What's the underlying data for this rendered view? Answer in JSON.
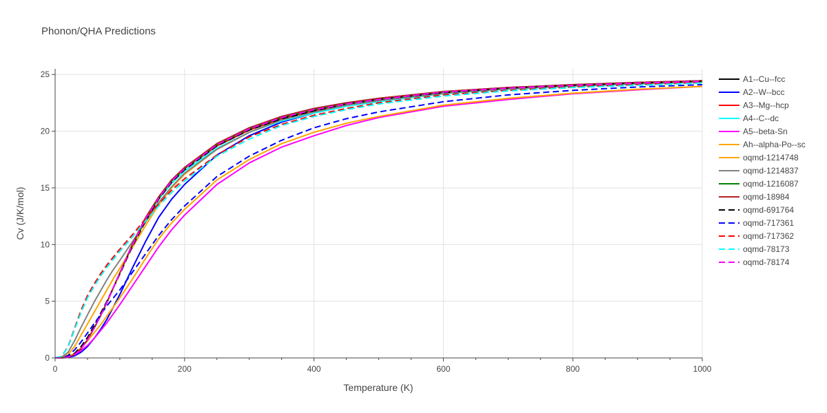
{
  "chart_data": {
    "type": "line",
    "title": "Phonon/QHA Predictions",
    "xlabel": "Temperature (K)",
    "ylabel": "Cv (J/K/mol)",
    "xlim": [
      0,
      1000
    ],
    "ylim": [
      0,
      25.5
    ],
    "x_ticks": [
      0,
      200,
      400,
      600,
      800,
      1000
    ],
    "y_ticks": [
      0,
      5,
      10,
      15,
      20,
      25
    ],
    "grid": true,
    "legend_position": "right",
    "x": [
      0,
      10,
      20,
      30,
      40,
      50,
      60,
      70,
      80,
      90,
      100,
      120,
      140,
      160,
      180,
      200,
      250,
      300,
      350,
      400,
      450,
      500,
      600,
      700,
      800,
      900,
      1000
    ],
    "series": [
      {
        "name": "A1--Cu--fcc",
        "color": "#000000",
        "dash": false,
        "values": [
          0,
          0.01,
          0.08,
          0.3,
          0.8,
          1.6,
          2.6,
          3.7,
          4.9,
          6.2,
          7.5,
          10.1,
          12.4,
          14.2,
          15.7,
          16.8,
          18.9,
          20.3,
          21.3,
          22.0,
          22.5,
          22.9,
          23.5,
          23.85,
          24.1,
          24.3,
          24.45
        ]
      },
      {
        "name": "A2--W--bcc",
        "color": "#0000ff",
        "dash": false,
        "values": [
          0,
          0.005,
          0.04,
          0.18,
          0.5,
          1.0,
          1.7,
          2.5,
          3.4,
          4.5,
          5.6,
          8.0,
          10.3,
          12.4,
          14.0,
          15.3,
          17.9,
          19.6,
          20.8,
          21.6,
          22.2,
          22.7,
          23.3,
          23.7,
          24.0,
          24.2,
          24.35
        ]
      },
      {
        "name": "A3--Mg--hcp",
        "color": "#ff0000",
        "dash": false,
        "values": [
          0,
          0.01,
          0.08,
          0.3,
          0.8,
          1.6,
          2.6,
          3.7,
          4.9,
          6.2,
          7.5,
          10.0,
          12.3,
          14.1,
          15.6,
          16.7,
          18.7,
          20.1,
          21.1,
          21.8,
          22.4,
          22.8,
          23.4,
          23.8,
          24.05,
          24.25,
          24.4
        ]
      },
      {
        "name": "A4--C--dc",
        "color": "#00ffff",
        "dash": false,
        "values": [
          0,
          0.01,
          0.08,
          0.3,
          0.8,
          1.6,
          2.6,
          3.7,
          4.9,
          6.2,
          7.5,
          10.0,
          12.2,
          14.0,
          15.4,
          16.5,
          18.5,
          19.9,
          20.9,
          21.6,
          22.2,
          22.6,
          23.3,
          23.7,
          23.95,
          24.15,
          24.3
        ]
      },
      {
        "name": "A5--beta-Sn",
        "color": "#ff00ff",
        "dash": false,
        "values": [
          0,
          0.01,
          0.08,
          0.28,
          0.65,
          1.1,
          1.7,
          2.4,
          3.1,
          3.9,
          4.7,
          6.4,
          8.1,
          9.8,
          11.3,
          12.6,
          15.3,
          17.2,
          18.6,
          19.6,
          20.5,
          21.2,
          22.2,
          22.8,
          23.3,
          23.65,
          23.95
        ]
      },
      {
        "name": "Ah--alpha-Po--sc",
        "color": "#ffa500",
        "dash": false,
        "values": [
          0,
          0.01,
          0.1,
          0.4,
          0.9,
          1.5,
          2.2,
          2.9,
          3.7,
          4.5,
          5.3,
          7.0,
          8.8,
          10.5,
          11.9,
          13.1,
          15.7,
          17.5,
          18.9,
          19.9,
          20.7,
          21.3,
          22.3,
          22.9,
          23.35,
          23.7,
          23.95
        ]
      },
      {
        "name": "oqmd-1214748",
        "color": "#ffa500",
        "dash": false,
        "values": [
          0,
          0.05,
          0.3,
          1.0,
          2.0,
          3.0,
          4.0,
          5.0,
          6.0,
          7.0,
          7.9,
          9.8,
          11.7,
          13.5,
          15.0,
          16.2,
          18.4,
          19.9,
          21.0,
          21.7,
          22.3,
          22.7,
          23.35,
          23.75,
          24.0,
          24.2,
          24.35
        ]
      },
      {
        "name": "oqmd-1214837",
        "color": "#808080",
        "dash": false,
        "values": [
          0,
          0.08,
          0.5,
          1.5,
          2.7,
          3.8,
          4.9,
          5.9,
          6.9,
          7.8,
          8.6,
          10.3,
          12.0,
          13.7,
          15.1,
          16.3,
          18.4,
          19.9,
          21.0,
          21.7,
          22.3,
          22.7,
          23.35,
          23.75,
          24.0,
          24.2,
          24.35
        ]
      },
      {
        "name": "oqmd-1216087",
        "color": "#008000",
        "dash": false,
        "values": [
          0,
          0.01,
          0.08,
          0.3,
          0.8,
          1.6,
          2.6,
          3.7,
          4.9,
          6.2,
          7.5,
          10.0,
          12.3,
          14.1,
          15.6,
          16.7,
          18.8,
          20.2,
          21.2,
          21.9,
          22.4,
          22.8,
          23.45,
          23.8,
          24.05,
          24.25,
          24.4
        ]
      },
      {
        "name": "oqmd-18984",
        "color": "#b22222",
        "dash": false,
        "values": [
          0,
          0.01,
          0.08,
          0.3,
          0.8,
          1.6,
          2.6,
          3.7,
          4.9,
          6.2,
          7.5,
          10.1,
          12.4,
          14.2,
          15.7,
          16.8,
          18.9,
          20.3,
          21.3,
          22.0,
          22.5,
          22.9,
          23.5,
          23.85,
          24.1,
          24.3,
          24.45
        ]
      },
      {
        "name": "oqmd-691764",
        "color": "#000000",
        "dash": true,
        "values": [
          0,
          0.01,
          0.1,
          0.4,
          1.0,
          1.8,
          2.8,
          3.9,
          5.0,
          6.2,
          7.4,
          9.9,
          12.1,
          14.0,
          15.5,
          16.6,
          18.7,
          20.1,
          21.1,
          21.8,
          22.4,
          22.8,
          23.4,
          23.8,
          24.05,
          24.25,
          24.4
        ]
      },
      {
        "name": "oqmd-717361",
        "color": "#0000ff",
        "dash": true,
        "values": [
          0,
          0.02,
          0.2,
          0.7,
          1.4,
          2.2,
          3.0,
          3.8,
          4.6,
          5.3,
          6.0,
          7.6,
          9.2,
          10.8,
          12.2,
          13.4,
          16.0,
          17.8,
          19.2,
          20.3,
          21.1,
          21.7,
          22.6,
          23.2,
          23.6,
          23.9,
          24.1
        ]
      },
      {
        "name": "oqmd-717362",
        "color": "#ff0000",
        "dash": true,
        "values": [
          0,
          0.15,
          1.0,
          2.6,
          4.2,
          5.5,
          6.5,
          7.4,
          8.2,
          8.9,
          9.6,
          10.9,
          12.3,
          13.6,
          14.8,
          15.8,
          17.9,
          19.5,
          20.6,
          21.4,
          22.0,
          22.5,
          23.2,
          23.6,
          23.9,
          24.1,
          24.3
        ]
      },
      {
        "name": "oqmd-78173",
        "color": "#00ffff",
        "dash": true,
        "values": [
          0,
          0.15,
          0.95,
          2.5,
          4.0,
          5.3,
          6.3,
          7.2,
          8.0,
          8.7,
          9.4,
          10.7,
          12.1,
          13.4,
          14.6,
          15.6,
          17.8,
          19.3,
          20.5,
          21.3,
          21.9,
          22.4,
          23.1,
          23.55,
          23.85,
          24.05,
          24.25
        ]
      },
      {
        "name": "oqmd-78174",
        "color": "#ff00ff",
        "dash": true,
        "values": [
          0,
          0.01,
          0.08,
          0.3,
          0.8,
          1.6,
          2.6,
          3.7,
          4.9,
          6.2,
          7.5,
          10.0,
          12.3,
          14.1,
          15.6,
          16.7,
          18.8,
          20.2,
          21.2,
          21.9,
          22.4,
          22.8,
          23.45,
          23.8,
          24.05,
          24.25,
          24.4
        ]
      }
    ]
  }
}
